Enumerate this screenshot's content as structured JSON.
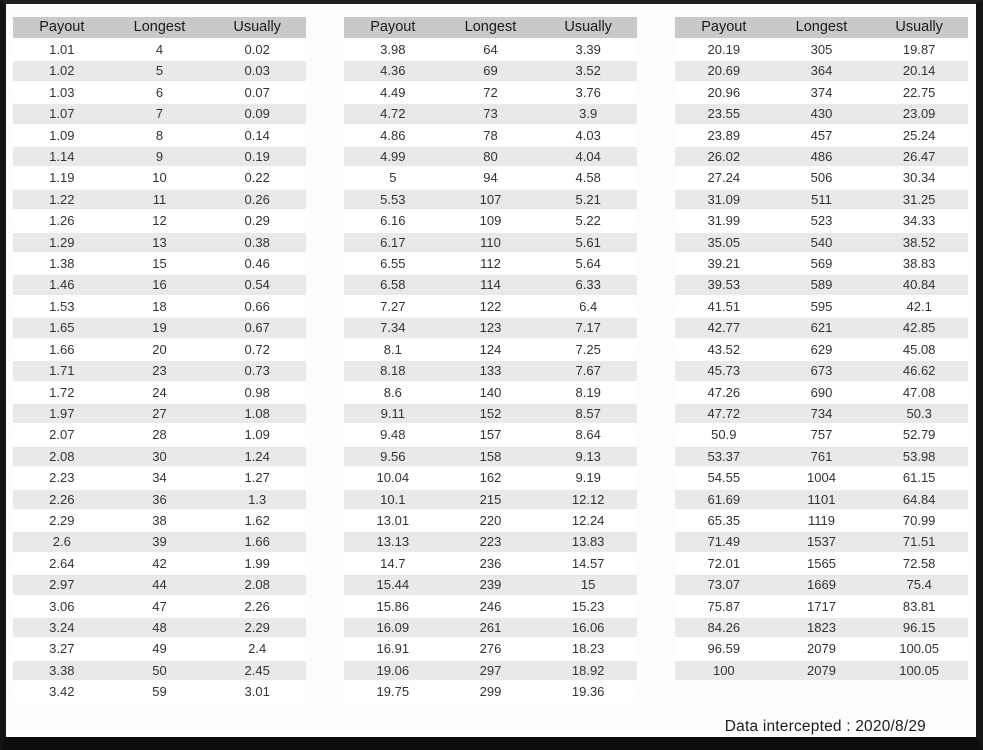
{
  "columns": [
    "Payout",
    "Longest",
    "Usually"
  ],
  "footer": {
    "text": "Data intercepted : 2020/8/29"
  },
  "colors": {
    "header_bg": "#c9c9c9",
    "stripe_bg": "#e9e9e9",
    "row_bg": "#ffffff",
    "text": "#333333",
    "frame": "#141414"
  },
  "tables": [
    {
      "rows": [
        [
          "1.01",
          "4",
          "0.02"
        ],
        [
          "1.02",
          "5",
          "0.03"
        ],
        [
          "1.03",
          "6",
          "0.07"
        ],
        [
          "1.07",
          "7",
          "0.09"
        ],
        [
          "1.09",
          "8",
          "0.14"
        ],
        [
          "1.14",
          "9",
          "0.19"
        ],
        [
          "1.19",
          "10",
          "0.22"
        ],
        [
          "1.22",
          "11",
          "0.26"
        ],
        [
          "1.26",
          "12",
          "0.29"
        ],
        [
          "1.29",
          "13",
          "0.38"
        ],
        [
          "1.38",
          "15",
          "0.46"
        ],
        [
          "1.46",
          "16",
          "0.54"
        ],
        [
          "1.53",
          "18",
          "0.66"
        ],
        [
          "1.65",
          "19",
          "0.67"
        ],
        [
          "1.66",
          "20",
          "0.72"
        ],
        [
          "1.71",
          "23",
          "0.73"
        ],
        [
          "1.72",
          "24",
          "0.98"
        ],
        [
          "1.97",
          "27",
          "1.08"
        ],
        [
          "2.07",
          "28",
          "1.09"
        ],
        [
          "2.08",
          "30",
          "1.24"
        ],
        [
          "2.23",
          "34",
          "1.27"
        ],
        [
          "2.26",
          "36",
          "1.3"
        ],
        [
          "2.29",
          "38",
          "1.62"
        ],
        [
          "2.6",
          "39",
          "1.66"
        ],
        [
          "2.64",
          "42",
          "1.99"
        ],
        [
          "2.97",
          "44",
          "2.08"
        ],
        [
          "3.06",
          "47",
          "2.26"
        ],
        [
          "3.24",
          "48",
          "2.29"
        ],
        [
          "3.27",
          "49",
          "2.4"
        ],
        [
          "3.38",
          "50",
          "2.45"
        ],
        [
          "3.42",
          "59",
          "3.01"
        ]
      ]
    },
    {
      "rows": [
        [
          "3.98",
          "64",
          "3.39"
        ],
        [
          "4.36",
          "69",
          "3.52"
        ],
        [
          "4.49",
          "72",
          "3.76"
        ],
        [
          "4.72",
          "73",
          "3.9"
        ],
        [
          "4.86",
          "78",
          "4.03"
        ],
        [
          "4.99",
          "80",
          "4.04"
        ],
        [
          "5",
          "94",
          "4.58"
        ],
        [
          "5.53",
          "107",
          "5.21"
        ],
        [
          "6.16",
          "109",
          "5.22"
        ],
        [
          "6.17",
          "110",
          "5.61"
        ],
        [
          "6.55",
          "112",
          "5.64"
        ],
        [
          "6.58",
          "114",
          "6.33"
        ],
        [
          "7.27",
          "122",
          "6.4"
        ],
        [
          "7.34",
          "123",
          "7.17"
        ],
        [
          "8.1",
          "124",
          "7.25"
        ],
        [
          "8.18",
          "133",
          "7.67"
        ],
        [
          "8.6",
          "140",
          "8.19"
        ],
        [
          "9.11",
          "152",
          "8.57"
        ],
        [
          "9.48",
          "157",
          "8.64"
        ],
        [
          "9.56",
          "158",
          "9.13"
        ],
        [
          "10.04",
          "162",
          "9.19"
        ],
        [
          "10.1",
          "215",
          "12.12"
        ],
        [
          "13.01",
          "220",
          "12.24"
        ],
        [
          "13.13",
          "223",
          "13.83"
        ],
        [
          "14.7",
          "236",
          "14.57"
        ],
        [
          "15.44",
          "239",
          "15"
        ],
        [
          "15.86",
          "246",
          "15.23"
        ],
        [
          "16.09",
          "261",
          "16.06"
        ],
        [
          "16.91",
          "276",
          "18.23"
        ],
        [
          "19.06",
          "297",
          "18.92"
        ],
        [
          "19.75",
          "299",
          "19.36"
        ]
      ]
    },
    {
      "rows": [
        [
          "20.19",
          "305",
          "19.87"
        ],
        [
          "20.69",
          "364",
          "20.14"
        ],
        [
          "20.96",
          "374",
          "22.75"
        ],
        [
          "23.55",
          "430",
          "23.09"
        ],
        [
          "23.89",
          "457",
          "25.24"
        ],
        [
          "26.02",
          "486",
          "26.47"
        ],
        [
          "27.24",
          "506",
          "30.34"
        ],
        [
          "31.09",
          "511",
          "31.25"
        ],
        [
          "31.99",
          "523",
          "34.33"
        ],
        [
          "35.05",
          "540",
          "38.52"
        ],
        [
          "39.21",
          "569",
          "38.83"
        ],
        [
          "39.53",
          "589",
          "40.84"
        ],
        [
          "41.51",
          "595",
          "42.1"
        ],
        [
          "42.77",
          "621",
          "42.85"
        ],
        [
          "43.52",
          "629",
          "45.08"
        ],
        [
          "45.73",
          "673",
          "46.62"
        ],
        [
          "47.26",
          "690",
          "47.08"
        ],
        [
          "47.72",
          "734",
          "50.3"
        ],
        [
          "50.9",
          "757",
          "52.79"
        ],
        [
          "53.37",
          "761",
          "53.98"
        ],
        [
          "54.55",
          "1004",
          "61.15"
        ],
        [
          "61.69",
          "1101",
          "64.84"
        ],
        [
          "65.35",
          "1119",
          "70.99"
        ],
        [
          "71.49",
          "1537",
          "71.51"
        ],
        [
          "72.01",
          "1565",
          "72.58"
        ],
        [
          "73.07",
          "1669",
          "75.4"
        ],
        [
          "75.87",
          "1717",
          "83.81"
        ],
        [
          "84.26",
          "1823",
          "96.15"
        ],
        [
          "96.59",
          "2079",
          "100.05"
        ],
        [
          "100",
          "2079",
          "100.05"
        ]
      ]
    }
  ]
}
